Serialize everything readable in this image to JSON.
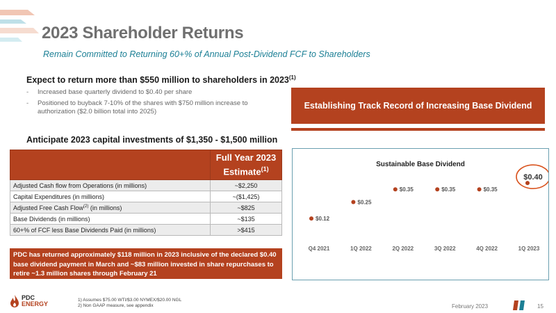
{
  "header": {
    "title": "2023 Shareholder Returns",
    "subtitle": "Remain Committed to Returning 60+% of Annual Post-Dividend FCF to Shareholders"
  },
  "left": {
    "expect_heading": "Expect to return more than $550 million to shareholders in 2023",
    "expect_footnote": "(1)",
    "bullets": [
      "Increased base quarterly dividend to $0.40 per share",
      "Positioned to buyback 7-10% of the shares with $750 million increase to authorization ($2.0 billion total into 2025)"
    ],
    "capex_heading": "Anticipate 2023 capital investments of $1,350 - $1,500 million"
  },
  "table": {
    "header_line1": "Full Year 2023",
    "header_line2": "Estimate",
    "header_footnote": "(1)",
    "rows": [
      {
        "label": "Adjusted Cash flow from Operations (in millions)",
        "footnote": "",
        "label_after": "",
        "value": "~$2,250"
      },
      {
        "label": "Capital Expenditures (in millions)",
        "footnote": "",
        "label_after": "",
        "value": "~($1,425)"
      },
      {
        "label": "Adjusted Free Cash Flow",
        "footnote": "(2)",
        "label_after": " (in millions)",
        "value": "~$825"
      },
      {
        "label": "Base Dividends (in millions)",
        "footnote": "",
        "label_after": "",
        "value": "~$135"
      },
      {
        "label": "60+% of FCF less Base Dividends Paid  (in millions)",
        "footnote": "",
        "label_after": "",
        "value": ">$415"
      }
    ]
  },
  "callout": "PDC has returned approximately $118 million in 2023 inclusive of the declared $0.40 base dividend payment in March and ~$83 million invested in share repurchases to retire ~1.3 million shares through February 21",
  "banner": "Establishing Track Record of Increasing Base Dividend",
  "chart_data": {
    "type": "scatter",
    "title": "Sustainable Base Dividend",
    "xlabel": "",
    "ylabel": "",
    "categories": [
      "Q4 2021",
      "1Q 2022",
      "2Q 2022",
      "3Q 2022",
      "4Q 2022",
      "1Q 2023"
    ],
    "values": [
      0.12,
      0.25,
      0.35,
      0.35,
      0.35,
      0.4
    ],
    "data_labels": [
      "$0.12",
      "$0.25",
      "$0.35",
      "$0.35",
      "$0.35",
      "$0.40"
    ],
    "ylim": [
      0.0,
      0.45
    ],
    "grid": false,
    "highlight_index": 5,
    "point_color": "#b4421f",
    "highlight_color": "#d9531e"
  },
  "footer": {
    "notes": [
      "1)    Assumes $75.00 WTI/$3.00 NYMEX/$20.00 NGL",
      "2)    Non GAAP measure, see appendix"
    ],
    "date": "February 2023",
    "page": "15",
    "logo_line1": "PDC",
    "logo_line2": "ENERGY"
  },
  "colors": {
    "accent": "#b4421f",
    "teal": "#1b7f95",
    "title_gray": "#707070"
  }
}
